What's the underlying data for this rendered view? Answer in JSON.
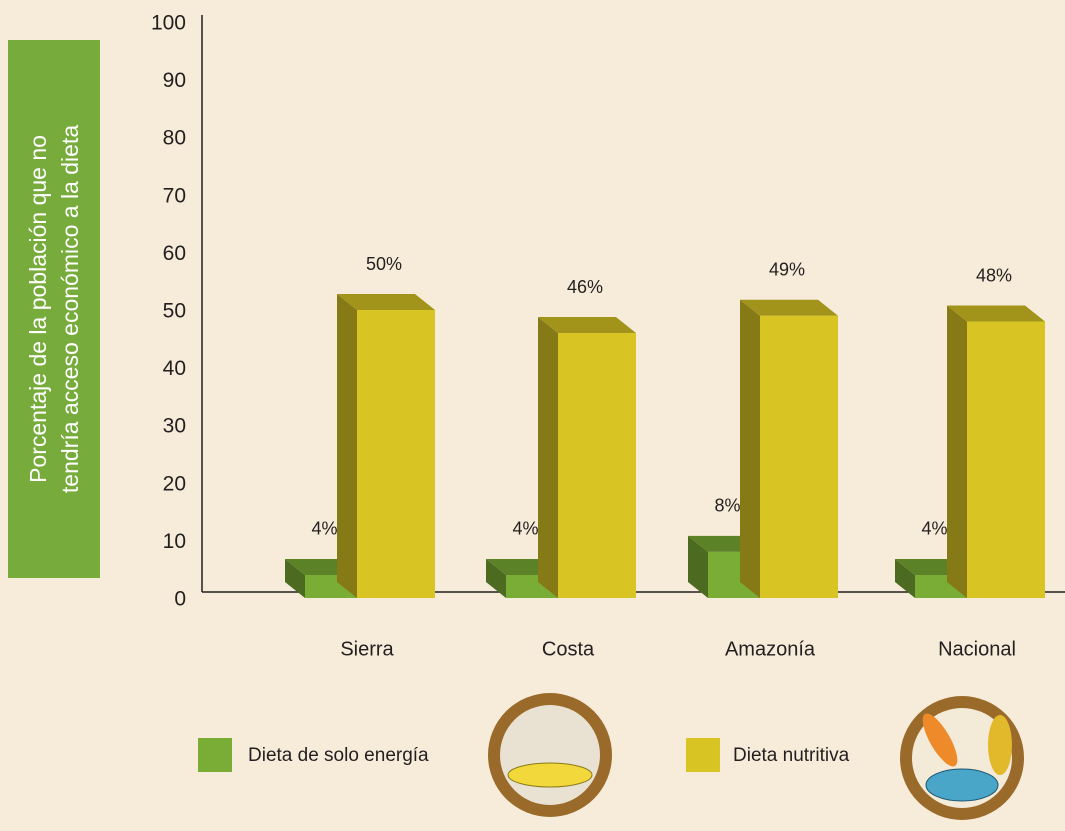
{
  "chart_data": {
    "type": "bar3d",
    "y_label": [
      "Porcentaje de la población que no",
      "tendría acceso económico a la dieta"
    ],
    "categories": [
      "Sierra",
      "Costa",
      "Amazonía",
      "Nacional"
    ],
    "series": [
      {
        "name": "Dieta de solo energía",
        "color": "#7aad35",
        "values": [
          4,
          4,
          8,
          4
        ],
        "value_labels": [
          "4%",
          "4%",
          "8%",
          "4%"
        ]
      },
      {
        "name": "Dieta nutritiva",
        "color": "#d8c523",
        "values": [
          50,
          46,
          49,
          48
        ],
        "value_labels": [
          "50%",
          "46%",
          "49%",
          "48%"
        ]
      }
    ],
    "ylim": [
      0,
      100
    ],
    "yticks": [
      0,
      10,
      20,
      30,
      40,
      50,
      60,
      70,
      80,
      90,
      100
    ],
    "legend": "bottom"
  }
}
